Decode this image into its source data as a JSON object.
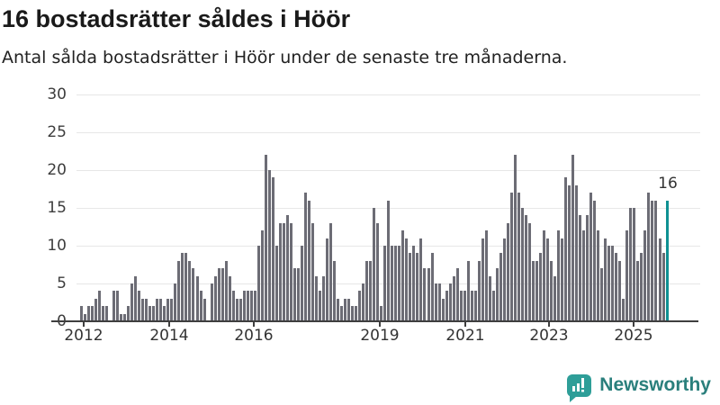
{
  "title": "16 bostadsrätter såldes i Höör",
  "subtitle": "Antal sålda bostadsrätter i Höör under de senaste tre månaderna.",
  "annotation_label": "16",
  "branding": {
    "name": "Newsworthy",
    "icon": "newsworthy-bar-chart-bubble-icon"
  },
  "colors": {
    "bar": "#6C6C75",
    "highlight": "#0F9193",
    "axis": "#3f3f3f",
    "grid": "#e7e7e7",
    "title_text": "#1a1a1a",
    "body_text": "#222222",
    "logo_teal": "#2E9E98",
    "logo_text": "#2A7F7C"
  },
  "chart_data": {
    "type": "bar",
    "title": "16 bostadsrätter såldes i Höör",
    "subtitle": "Antal sålda bostadsrätter i Höör under de senaste tre månaderna.",
    "unit": "sålda bostadsrätter per 3 månader",
    "ylim": [
      0,
      30
    ],
    "y_ticks": [
      0,
      5,
      10,
      15,
      20,
      25,
      30
    ],
    "x_tick_labels": [
      "2012",
      "2014",
      "2016",
      "2019",
      "2021",
      "2023",
      "2025"
    ],
    "grid": true,
    "values": [
      2,
      1,
      2,
      2,
      3,
      4,
      2,
      2,
      0,
      4,
      4,
      1,
      1,
      2,
      5,
      6,
      4,
      3,
      3,
      2,
      2,
      3,
      3,
      2,
      3,
      3,
      5,
      8,
      9,
      9,
      8,
      7,
      6,
      4,
      3,
      0,
      5,
      6,
      7,
      7,
      8,
      6,
      4,
      3,
      3,
      4,
      4,
      4,
      4,
      10,
      12,
      22,
      20,
      19,
      10,
      13,
      13,
      14,
      13,
      7,
      7,
      10,
      17,
      16,
      13,
      6,
      4,
      6,
      11,
      13,
      8,
      3,
      2,
      3,
      3,
      2,
      2,
      4,
      5,
      8,
      8,
      15,
      13,
      2,
      10,
      16,
      10,
      10,
      10,
      12,
      11,
      9,
      10,
      9,
      11,
      7,
      7,
      9,
      5,
      5,
      3,
      4,
      5,
      6,
      7,
      4,
      4,
      8,
      4,
      4,
      8,
      11,
      12,
      6,
      4,
      7,
      9,
      11,
      13,
      17,
      22,
      17,
      15,
      14,
      13,
      8,
      8,
      9,
      12,
      11,
      8,
      6,
      12,
      11,
      19,
      18,
      22,
      18,
      14,
      12,
      14,
      17,
      16,
      12,
      7,
      11,
      10,
      10,
      9,
      8,
      3,
      12,
      15,
      15,
      8,
      9,
      12,
      17,
      16,
      16,
      11,
      9,
      16
    ],
    "highlight_last_bar": true,
    "last_value_label": "16",
    "legend": null
  }
}
